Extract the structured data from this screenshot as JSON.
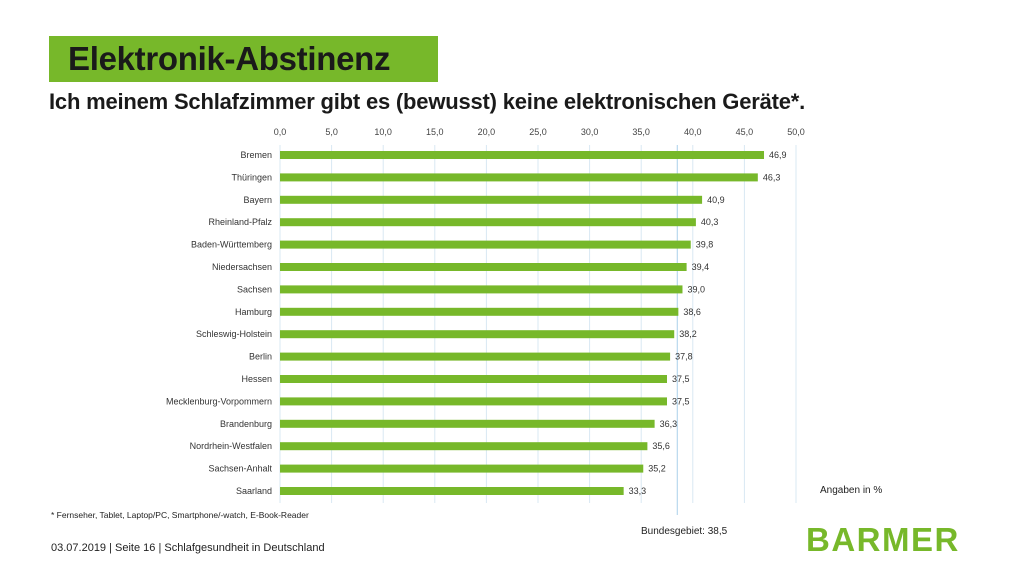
{
  "header": {
    "title": "Elektronik-Abstinenz",
    "subtitle": "Ich meinem Schlafzimmer gibt es (bewusst) keine elektronischen Geräte*."
  },
  "notes": {
    "unit": "Angaben in %",
    "footnote": "* Fernseher, Tablet, Laptop/PC, Smartphone/-watch, E-Book-Reader",
    "average": "Bundesgebiet: 38,5"
  },
  "footer": {
    "text": "03.07.2019 | Seite 16 | Schlafgesundheit in Deutschland",
    "logo": "BARMER"
  },
  "colors": {
    "accent": "#77b82a",
    "bar": "#77b82a",
    "gridline": "#d9e8f3",
    "avg_line": "#b8d8ee"
  },
  "chart_data": {
    "type": "bar",
    "orientation": "horizontal",
    "categories": [
      "Bremen",
      "Thüringen",
      "Bayern",
      "Rheinland-Pfalz",
      "Baden-Württemberg",
      "Niedersachsen",
      "Sachsen",
      "Hamburg",
      "Schleswig-Holstein",
      "Berlin",
      "Hessen",
      "Mecklenburg-Vorpommern",
      "Brandenburg",
      "Nordrhein-Westfalen",
      "Sachsen-Anhalt",
      "Saarland"
    ],
    "values": [
      46.9,
      46.3,
      40.9,
      40.3,
      39.8,
      39.4,
      39.0,
      38.6,
      38.2,
      37.8,
      37.5,
      37.5,
      36.3,
      35.6,
      35.2,
      33.3
    ],
    "value_labels": [
      "46,9",
      "46,3",
      "40,9",
      "40,3",
      "39,8",
      "39,4",
      "39,0",
      "38,6",
      "38,2",
      "37,8",
      "37,5",
      "37,5",
      "36,3",
      "35,6",
      "35,2",
      "33,3"
    ],
    "xlim": [
      0,
      50
    ],
    "ticks": [
      "0,0",
      "5,0",
      "10,0",
      "15,0",
      "20,0",
      "25,0",
      "30,0",
      "35,0",
      "40,0",
      "45,0",
      "50,0"
    ],
    "tick_values": [
      0,
      5,
      10,
      15,
      20,
      25,
      30,
      35,
      40,
      45,
      50
    ],
    "axis_position": "top",
    "reference_line": 38.5,
    "grid": true
  }
}
